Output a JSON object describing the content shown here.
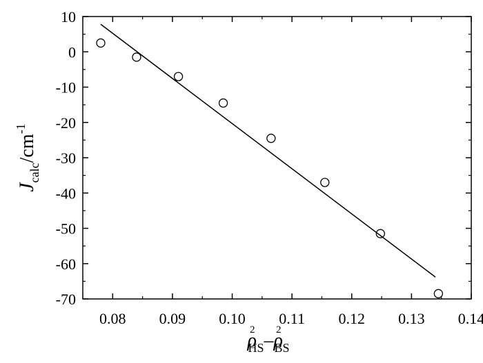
{
  "chart_data": {
    "type": "scatter",
    "xlabel": {
      "rho": "ρ",
      "sup1": "2",
      "sub1": "HS",
      "minus": "–",
      "rho2": "ρ",
      "sup2": "2",
      "sub2": "BS"
    },
    "ylabel": {
      "main": "J",
      "sub": "calc",
      "unit": "/cm",
      "sup": "-1"
    },
    "xlim": [
      0.075,
      0.14
    ],
    "ylim": [
      -70,
      10
    ],
    "x_ticks": [
      0.08,
      0.09,
      0.1,
      0.11,
      0.12,
      0.13,
      0.14
    ],
    "x_tick_labels": [
      "0.08",
      "0.09",
      "0.10",
      "0.11",
      "0.12",
      "0.13",
      "0.14"
    ],
    "y_ticks": [
      10,
      0,
      -10,
      -20,
      -30,
      -40,
      -50,
      -60,
      -70
    ],
    "y_tick_labels": [
      "10",
      "0",
      "-10",
      "-20",
      "-30",
      "-40",
      "-50",
      "-60",
      "-70"
    ],
    "points": [
      {
        "x": 0.078,
        "y": 2.5
      },
      {
        "x": 0.084,
        "y": -1.5
      },
      {
        "x": 0.091,
        "y": -7.0
      },
      {
        "x": 0.0985,
        "y": -14.5
      },
      {
        "x": 0.1065,
        "y": -24.5
      },
      {
        "x": 0.1155,
        "y": -37.0
      },
      {
        "x": 0.1248,
        "y": -51.5
      },
      {
        "x": 0.1345,
        "y": -68.5
      }
    ],
    "fit_line": [
      {
        "x": 0.078,
        "y": 7.8
      },
      {
        "x": 0.134,
        "y": -63.8
      }
    ],
    "grid": false,
    "legend": "none",
    "colors": {
      "axis": "#000000",
      "marker": "#000000",
      "line": "#000000"
    }
  }
}
